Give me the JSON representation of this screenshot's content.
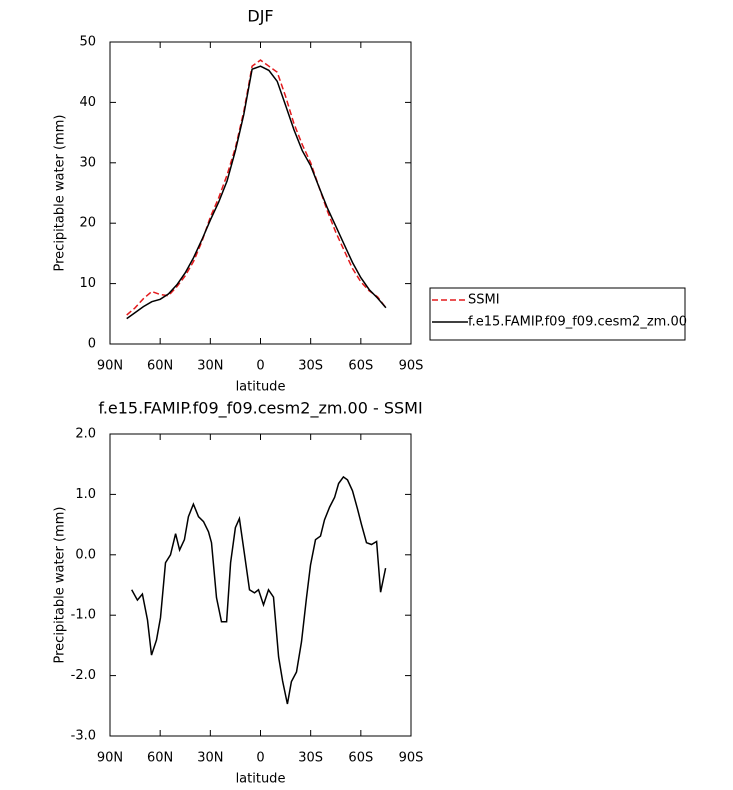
{
  "chart_data": [
    {
      "type": "line",
      "title": "DJF",
      "xlabel": "latitude",
      "ylabel": "Precipitable water (mm)",
      "x": [
        80,
        75,
        70,
        65,
        60,
        55,
        50,
        45,
        40,
        35,
        30,
        25,
        20,
        15,
        10,
        5,
        0,
        -5,
        -10,
        -15,
        -20,
        -25,
        -30,
        -35,
        -40,
        -45,
        -50,
        -55,
        -60,
        -65,
        -70,
        -75
      ],
      "series": [
        {
          "name": "SSMI",
          "color": "#e31a1c",
          "dash": true,
          "values": [
            4.8,
            6.0,
            7.5,
            8.7,
            8.2,
            8.0,
            9.5,
            11.3,
            13.7,
            17.0,
            21.0,
            24.2,
            28.0,
            32.5,
            38.5,
            46,
            47,
            46,
            45,
            41,
            36.5,
            33,
            30,
            26,
            22,
            18.5,
            15.5,
            12.5,
            10.3,
            8.8,
            7.8,
            6.0
          ]
        },
        {
          "name": "f.e15.FAMIP.f09_f09.cesm2_zm.00",
          "color": "#000000",
          "dash": false,
          "values": [
            4.2,
            5.2,
            6.2,
            7.0,
            7.4,
            8.3,
            9.8,
            11.8,
            14.3,
            17.3,
            20.5,
            23.5,
            27.0,
            32.0,
            38.0,
            45.5,
            46,
            45.3,
            43.5,
            39.5,
            35.5,
            32,
            29.5,
            26,
            22.5,
            19.5,
            16.5,
            13.5,
            11.0,
            9.0,
            7.6,
            6.0
          ]
        }
      ],
      "xlim": [
        90,
        -90
      ],
      "xticks": [
        {
          "value": 90,
          "label": "90N"
        },
        {
          "value": 60,
          "label": "60N"
        },
        {
          "value": 30,
          "label": "30N"
        },
        0,
        {
          "value": -30,
          "label": "30S"
        },
        {
          "value": -60,
          "label": "60S"
        },
        {
          "value": -90,
          "label": "90S"
        }
      ],
      "ylim": [
        0,
        50
      ],
      "yticks": [
        0,
        10,
        20,
        30,
        40,
        50
      ],
      "legend": "right"
    },
    {
      "type": "line",
      "title": "f.e15.FAMIP.f09_f09.cesm2_zm.00 - SSMI",
      "xlabel": "latitude",
      "ylabel": "Precipitable water (mm)",
      "x": [
        77,
        73.6,
        70.6,
        67.6,
        65.2,
        62.2,
        59.8,
        56.8,
        53.8,
        50.8,
        48.4,
        45.5,
        43.1,
        40.1,
        37.1,
        34.1,
        31.1,
        29.3,
        26.3,
        23.3,
        20.3,
        17.9,
        15,
        12.6,
        9.6,
        6.6,
        3.6,
        1.2,
        -1.8,
        -4.8,
        -7.8,
        -10.8,
        -13.2,
        -16.1,
        -18.5,
        -21.5,
        -24.5,
        -27.5,
        -29.9,
        -32.9,
        -35.9,
        -38.3,
        -41.3,
        -44.3,
        -46.7,
        -49.6,
        -52,
        -55,
        -58,
        -60.4,
        -63.4,
        -66.4,
        -69.4,
        -71.8,
        -74.8
      ],
      "series": [
        {
          "color": "#000000",
          "dash": false,
          "values": [
            -0.58,
            -0.75,
            -0.65,
            -1.08,
            -1.66,
            -1.41,
            -1.04,
            -0.13,
            0.0,
            0.35,
            0.08,
            0.25,
            0.63,
            0.84,
            0.63,
            0.55,
            0.38,
            0.2,
            -0.71,
            -1.11,
            -1.11,
            -0.13,
            0.45,
            0.6,
            0.02,
            -0.58,
            -0.63,
            -0.58,
            -0.83,
            -0.58,
            -0.7,
            -1.69,
            -2.09,
            -2.47,
            -2.1,
            -1.94,
            -1.44,
            -0.71,
            -0.17,
            0.25,
            0.31,
            0.58,
            0.79,
            0.95,
            1.18,
            1.29,
            1.24,
            1.06,
            0.76,
            0.5,
            0.2,
            0.17,
            0.22,
            -0.62,
            -0.22
          ]
        }
      ],
      "xlim": [
        90,
        -90
      ],
      "xticks": [
        {
          "value": 90,
          "label": "90N"
        },
        {
          "value": 60,
          "label": "60N"
        },
        {
          "value": 30,
          "label": "30N"
        },
        0,
        {
          "value": -30,
          "label": "30S"
        },
        {
          "value": -60,
          "label": "60S"
        },
        {
          "value": -90,
          "label": "90S"
        }
      ],
      "ylim": [
        -3,
        2
      ],
      "yticks": [
        {
          "value": -3,
          "label": "-3.0"
        },
        {
          "value": -2,
          "label": "-2.0"
        },
        {
          "value": -1,
          "label": "-1.0"
        },
        {
          "value": 0,
          "label": "0.0"
        },
        {
          "value": 1,
          "label": "1.0"
        },
        {
          "value": 2,
          "label": "2.0"
        }
      ]
    }
  ]
}
